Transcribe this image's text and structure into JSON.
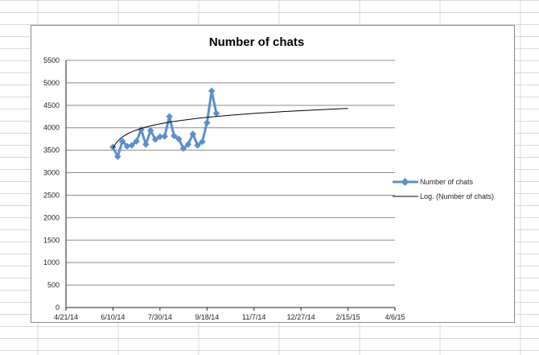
{
  "chart_data": {
    "type": "line",
    "title": "Number of chats",
    "xlabel": "",
    "ylabel": "",
    "x_ticks": [
      "4/21/14",
      "6/10/14",
      "7/30/14",
      "9/18/14",
      "11/7/14",
      "12/27/14",
      "2/15/15",
      "4/6/15"
    ],
    "x_range": [
      "2014-04-21",
      "2015-04-06"
    ],
    "ylim": [
      0,
      5500
    ],
    "y_ticks": [
      0,
      500,
      1000,
      1500,
      2000,
      2500,
      3000,
      3500,
      4000,
      4500,
      5000,
      5500
    ],
    "grid": "horizontal",
    "legend_position": "right",
    "series": [
      {
        "name": "Number of chats",
        "color": "#5b8fc9",
        "marker": "diamond",
        "points": [
          [
            "2014-06-10",
            3570
          ],
          [
            "2014-06-15",
            3360
          ],
          [
            "2014-06-20",
            3700
          ],
          [
            "2014-06-25",
            3590
          ],
          [
            "2014-06-30",
            3610
          ],
          [
            "2014-07-05",
            3700
          ],
          [
            "2014-07-10",
            3960
          ],
          [
            "2014-07-15",
            3630
          ],
          [
            "2014-07-20",
            3940
          ],
          [
            "2014-07-25",
            3740
          ],
          [
            "2014-07-30",
            3800
          ],
          [
            "2014-08-04",
            3810
          ],
          [
            "2014-08-09",
            4250
          ],
          [
            "2014-08-14",
            3820
          ],
          [
            "2014-08-19",
            3750
          ],
          [
            "2014-08-24",
            3540
          ],
          [
            "2014-08-29",
            3630
          ],
          [
            "2014-09-03",
            3860
          ],
          [
            "2014-09-08",
            3610
          ],
          [
            "2014-09-13",
            3690
          ],
          [
            "2014-09-18",
            4110
          ],
          [
            "2014-09-23",
            4820
          ],
          [
            "2014-09-28",
            4320
          ]
        ]
      },
      {
        "name": "Log. (Number of chats)",
        "color": "#000000",
        "trendline": "logarithmic",
        "points": [
          [
            "2014-06-10",
            3550
          ],
          [
            "2015-02-15",
            4430
          ]
        ]
      }
    ]
  }
}
